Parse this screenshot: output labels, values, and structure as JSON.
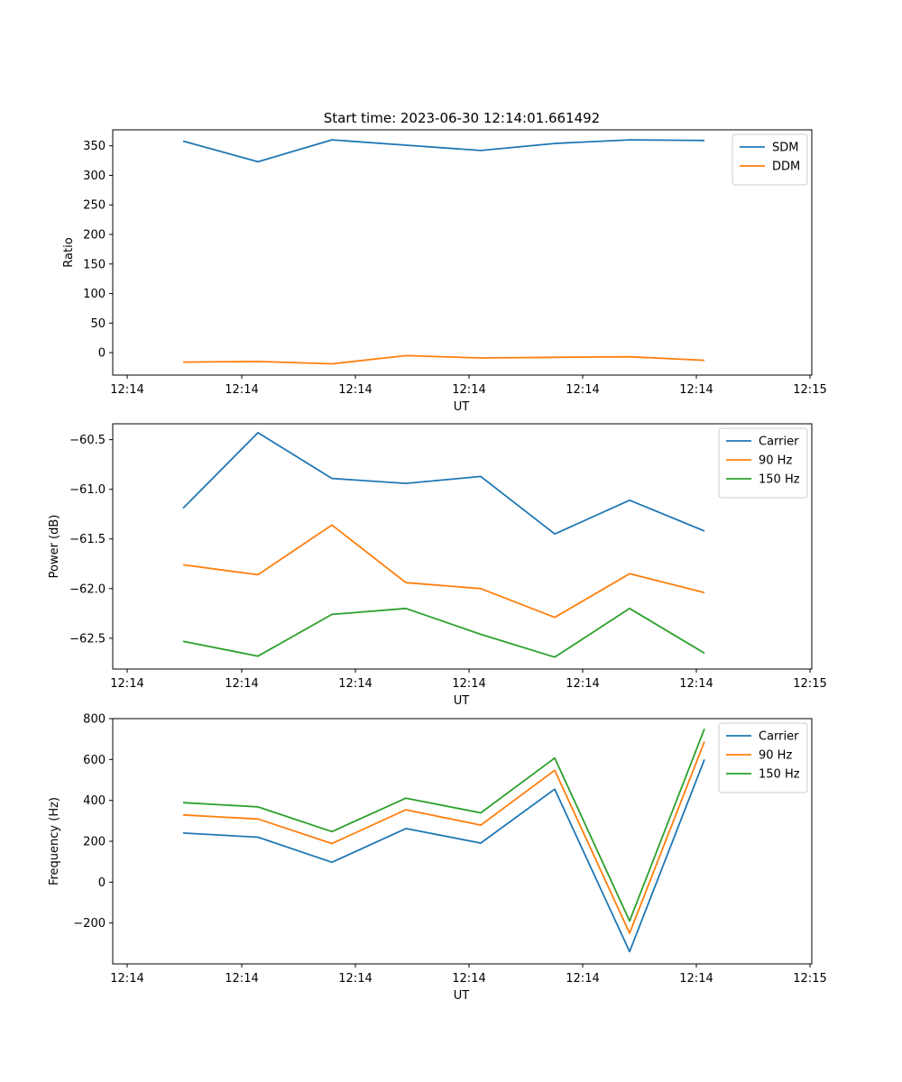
{
  "figure_title": "Start time: 2023-06-30 12:14:01.661492",
  "chart_data": [
    {
      "type": "line",
      "title": "Start time: 2023-06-30 12:14:01.661492",
      "xlabel": "UT",
      "ylabel": "Ratio",
      "x_tick_labels": [
        "12:14",
        "12:14",
        "12:14",
        "12:14",
        "12:14",
        "12:14",
        "12:14",
        "12:15"
      ],
      "yticks": [
        0,
        50,
        100,
        150,
        200,
        250,
        300,
        350
      ],
      "ylim": [
        -38,
        377
      ],
      "grid": false,
      "legend": "top-right",
      "series": [
        {
          "name": "SDM",
          "color": "#1f77b4",
          "values": [
            358,
            323,
            360,
            351,
            342,
            354,
            360,
            359
          ]
        },
        {
          "name": "DDM",
          "color": "#ff7f0e",
          "values": [
            -16,
            -15,
            -19,
            -5,
            -9,
            -8,
            -7,
            -13
          ]
        }
      ]
    },
    {
      "type": "line",
      "title": "",
      "xlabel": "UT",
      "ylabel": "Power (dB)",
      "x_tick_labels": [
        "12:14",
        "12:14",
        "12:14",
        "12:14",
        "12:14",
        "12:14",
        "12:14",
        "12:15"
      ],
      "yticks": [
        -62.5,
        -62.0,
        -61.5,
        -61.0,
        -60.5
      ],
      "ytick_labels": [
        "−62.5",
        "−62.0",
        "−61.5",
        "−61.0",
        "−60.5"
      ],
      "ylim": [
        -62.81,
        -60.34
      ],
      "grid": false,
      "legend": "top-right",
      "series": [
        {
          "name": "Carrier",
          "color": "#1f77b4",
          "values": [
            -61.19,
            -60.43,
            -60.89,
            -60.94,
            -60.87,
            -61.45,
            -61.11,
            -61.42
          ]
        },
        {
          "name": "90 Hz",
          "color": "#ff7f0e",
          "values": [
            -61.76,
            -61.86,
            -61.36,
            -61.94,
            -62.0,
            -62.29,
            -61.85,
            -62.04
          ]
        },
        {
          "name": "150 Hz",
          "color": "#2ca02c",
          "values": [
            -62.53,
            -62.68,
            -62.26,
            -62.2,
            -62.46,
            -62.69,
            -62.2,
            -62.65
          ]
        }
      ]
    },
    {
      "type": "line",
      "title": "",
      "xlabel": "UT",
      "ylabel": "Frequency (Hz)",
      "x_tick_labels": [
        "12:14",
        "12:14",
        "12:14",
        "12:14",
        "12:14",
        "12:14",
        "12:14",
        "12:15"
      ],
      "yticks": [
        -200,
        0,
        200,
        400,
        600,
        800
      ],
      "ytick_labels": [
        "−200",
        "0",
        "200",
        "400",
        "600",
        "800"
      ],
      "ylim": [
        -400,
        800
      ],
      "grid": false,
      "legend": "top-right",
      "series": [
        {
          "name": "Carrier",
          "color": "#1f77b4",
          "values": [
            240,
            220,
            97,
            262,
            191,
            455,
            -340,
            600
          ]
        },
        {
          "name": "90 Hz",
          "color": "#ff7f0e",
          "values": [
            329,
            309,
            189,
            354,
            279,
            547,
            -250,
            688
          ]
        },
        {
          "name": "150 Hz",
          "color": "#2ca02c",
          "values": [
            389,
            368,
            247,
            411,
            339,
            607,
            -190,
            750
          ]
        }
      ]
    }
  ]
}
